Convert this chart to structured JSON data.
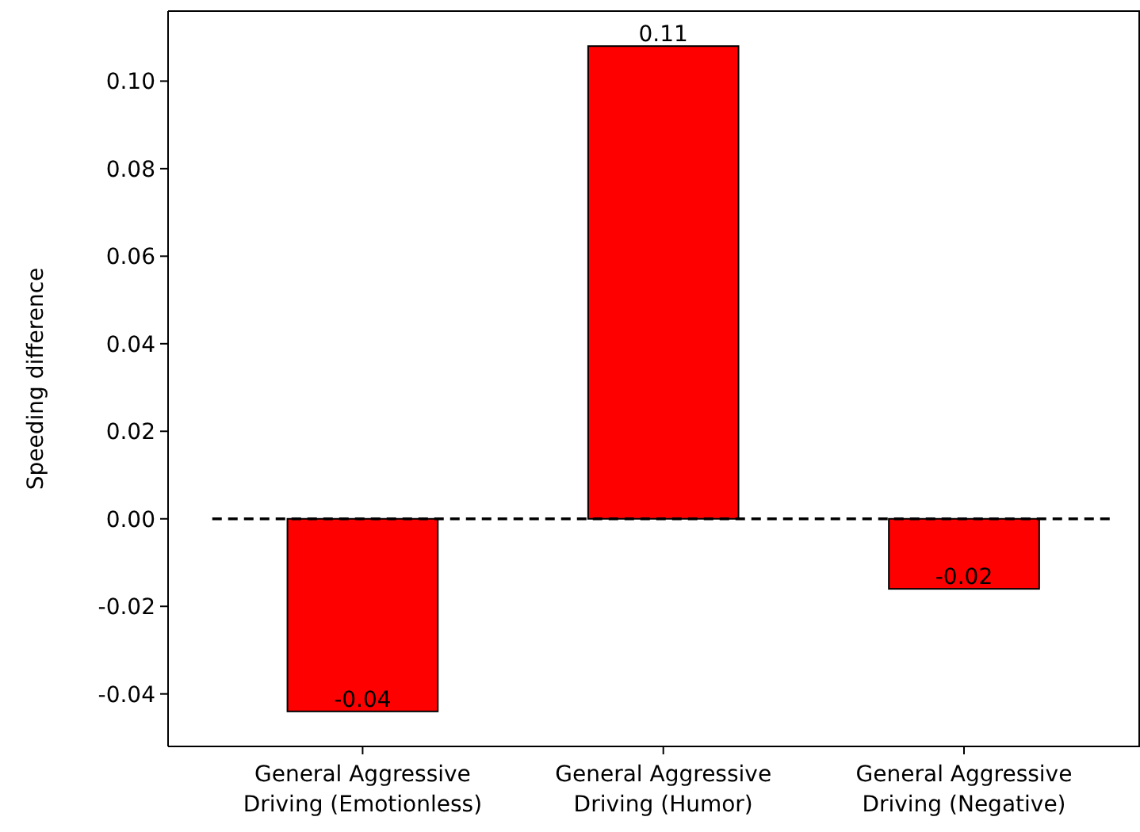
{
  "chart_data": {
    "type": "bar",
    "ylabel": "Speeding difference",
    "categories": [
      "General Aggressive\nDriving (Emotionless)",
      "General Aggressive\nDriving (Humor)",
      "General Aggressive\nDriving (Negative)"
    ],
    "values": [
      -0.044,
      0.108,
      -0.016
    ],
    "value_labels": [
      "-0.04",
      "0.11",
      "-0.02"
    ],
    "color": "#ff0000",
    "ylim": [
      -0.052,
      0.116
    ],
    "yticks": [
      -0.04,
      -0.02,
      {
        "value": 0,
        "label": "0.00"
      },
      0.02,
      0.04,
      0.06,
      0.08,
      {
        "value": 0.1,
        "label": "0.10"
      }
    ],
    "ref_lines": [
      {
        "axis": "y",
        "value": 0,
        "line_style": "dashed",
        "color": "#000000"
      }
    ],
    "grid": false
  }
}
